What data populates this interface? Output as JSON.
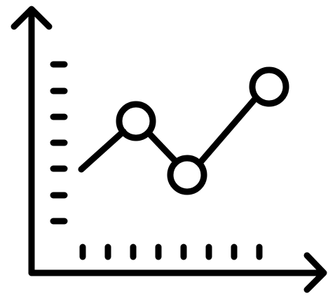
{
  "icon": {
    "name": "line-chart-icon",
    "stroke_color": "#000000",
    "background_color": "#ffffff",
    "series_point_count": 4,
    "y_tick_count": 7,
    "x_tick_count": 8
  }
}
